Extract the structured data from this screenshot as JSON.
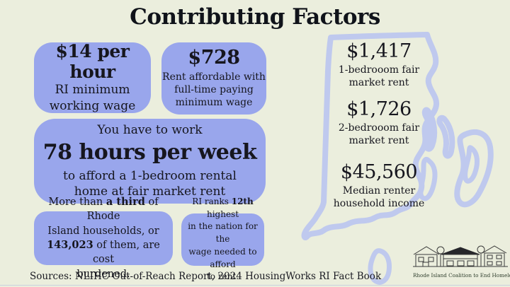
{
  "title": "Contributing Factors",
  "colors": {
    "background": "#ebeedd",
    "box": "#99a6ec",
    "map_outline": "#bfc9ee",
    "text": "#16161e"
  },
  "boxes": {
    "min_wage": {
      "headline": "$14 per hour",
      "lines": [
        "RI minimum",
        "working wage"
      ]
    },
    "affordable_rent": {
      "headline": "$728",
      "lines": [
        "Rent affordable with",
        "full-time paying",
        "minimum wage"
      ]
    },
    "work_hours": {
      "intro": "You have to work",
      "headline": "78 hours per week",
      "lines": [
        "to afford a 1-bedroom rental",
        "home at fair market rent"
      ]
    },
    "cost_burdened": {
      "segments": [
        [
          {
            "t": "More than ",
            "b": false
          },
          {
            "t": "a third",
            "b": true
          },
          {
            "t": " of Rhode",
            "b": false
          }
        ],
        [
          {
            "t": "Island households, or",
            "b": false
          }
        ],
        [
          {
            "t": "143,023",
            "b": true
          },
          {
            "t": " of them, are cost",
            "b": false
          }
        ],
        [
          {
            "t": "burdened.",
            "b": false
          }
        ]
      ]
    },
    "rank": {
      "segments": [
        [
          {
            "t": "RI ranks ",
            "b": false
          },
          {
            "t": "12th",
            "b": true
          },
          {
            "t": " highest",
            "b": false
          }
        ],
        [
          {
            "t": "in the nation for the",
            "b": false
          }
        ],
        [
          {
            "t": "wage needed to afford",
            "b": false
          }
        ],
        [
          {
            "t": "to rent.",
            "b": false
          }
        ]
      ]
    }
  },
  "state_stats": [
    {
      "value": "$1,417",
      "lines": [
        "1-bedrooom fair",
        "market rent"
      ]
    },
    {
      "value": "$1,726",
      "lines": [
        "2-bedrooom fair",
        "market rent"
      ]
    },
    {
      "value": "$45,560",
      "lines": [
        "Median renter",
        "household income"
      ]
    }
  ],
  "sources": "Sources: NLIHC Out-of-Reach Report, 2024 HousingWorks RI Fact Book",
  "logo": {
    "caption": "Rhode Island Coalition to End Homelessness"
  }
}
